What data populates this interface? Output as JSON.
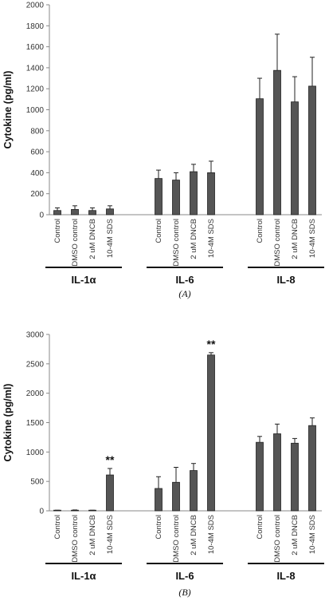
{
  "chart_data": [
    {
      "type": "bar",
      "panel_label": "(A)",
      "ylabel": "Cytokine (pg/ml)",
      "ylim": [
        0,
        2000
      ],
      "yticks": [
        0,
        200,
        400,
        600,
        800,
        1000,
        1200,
        1400,
        1600,
        1800,
        2000
      ],
      "categories": [
        "Control",
        "DMSO control",
        "2 uM DNCB",
        "10-4M SDS"
      ],
      "groups": [
        {
          "name": "IL-1α",
          "values": [
            40,
            50,
            40,
            55
          ],
          "errors": [
            25,
            35,
            25,
            30
          ],
          "annotations": [
            "",
            "",
            "",
            ""
          ]
        },
        {
          "name": "IL-6",
          "values": [
            345,
            330,
            410,
            400
          ],
          "errors": [
            80,
            70,
            70,
            110
          ],
          "annotations": [
            "",
            "",
            "",
            ""
          ]
        },
        {
          "name": "IL-8",
          "values": [
            1105,
            1375,
            1075,
            1225
          ],
          "errors": [
            195,
            345,
            240,
            275
          ],
          "annotations": [
            "",
            "",
            "",
            ""
          ]
        }
      ],
      "bar_color": "#555555"
    },
    {
      "type": "bar",
      "panel_label": "(B)",
      "ylabel": "Cytokine (pg/ml)",
      "ylim": [
        0,
        3000
      ],
      "yticks": [
        0,
        500,
        1000,
        1500,
        2000,
        2500,
        3000
      ],
      "categories": [
        "Control",
        "DMSO control",
        "2 uM DNCB",
        "10-4M SDS"
      ],
      "groups": [
        {
          "name": "IL-1α",
          "values": [
            5,
            10,
            5,
            610
          ],
          "errors": [
            5,
            5,
            5,
            110
          ],
          "annotations": [
            "",
            "",
            "",
            "**"
          ]
        },
        {
          "name": "IL-6",
          "values": [
            380,
            485,
            685,
            2650
          ],
          "errors": [
            200,
            255,
            120,
            40
          ],
          "annotations": [
            "",
            "",
            "",
            "**"
          ]
        },
        {
          "name": "IL-8",
          "values": [
            1165,
            1310,
            1150,
            1450
          ],
          "errors": [
            100,
            165,
            80,
            130
          ],
          "annotations": [
            "",
            "",
            "",
            ""
          ]
        }
      ],
      "bar_color": "#555555"
    }
  ]
}
